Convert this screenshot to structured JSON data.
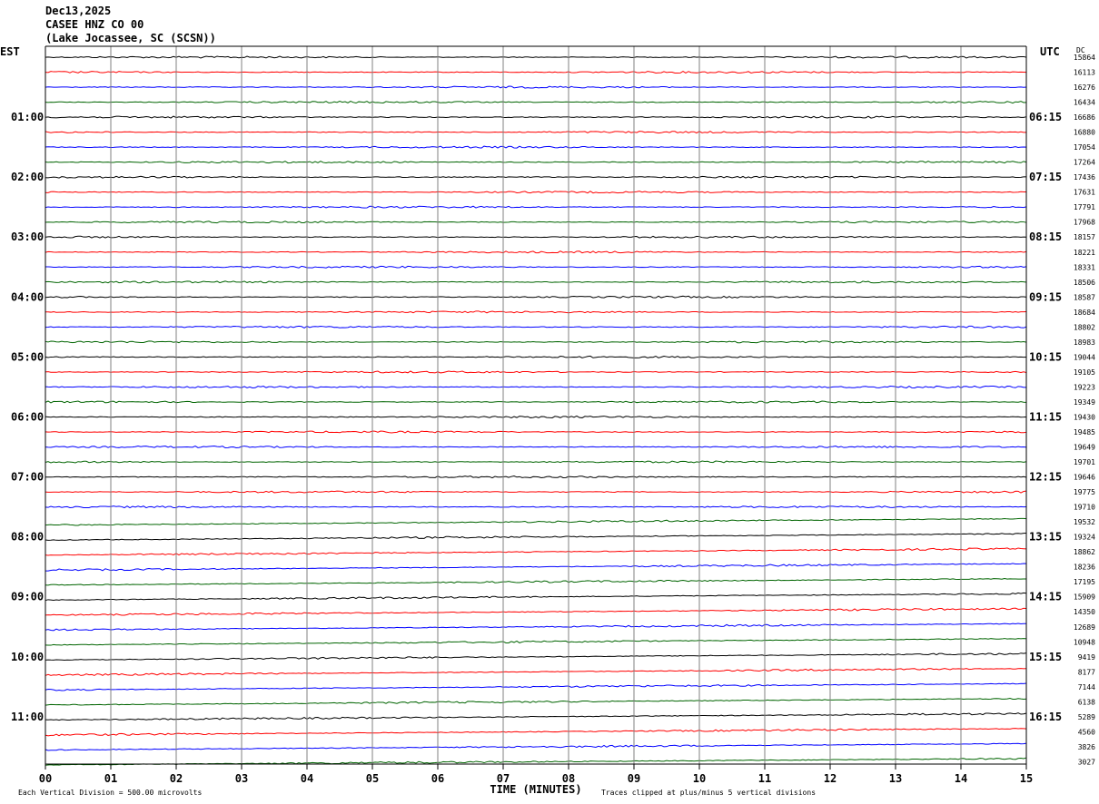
{
  "header": {
    "date": "Dec13,2025",
    "station": "CASEE HNZ CO 00",
    "location": "(Lake Jocassee, SC (SCSN))"
  },
  "chart_data": {
    "type": "line",
    "left_timezone": "EST",
    "right_timezone": "UTC",
    "dc_header": "DC",
    "xlabel": "TIME (MINUTES)",
    "x_ticks": [
      "00",
      "01",
      "02",
      "03",
      "04",
      "05",
      "06",
      "07",
      "08",
      "09",
      "10",
      "11",
      "12",
      "13",
      "14",
      "15"
    ],
    "x_range": [
      0,
      15
    ],
    "left_hour_labels": [
      "01:00",
      "02:00",
      "03:00",
      "04:00",
      "05:00",
      "06:00",
      "07:00",
      "08:00",
      "09:00",
      "10:00",
      "11:00"
    ],
    "right_hour_labels": [
      "06:15",
      "07:15",
      "08:15",
      "09:15",
      "10:15",
      "11:15",
      "12:15",
      "13:15",
      "14:15",
      "15:15",
      "16:15"
    ],
    "trace_colors": [
      "#000000",
      "#ff0000",
      "#0000ff",
      "#006400"
    ],
    "dc_values": [
      "15864",
      "16113",
      "16276",
      "16434",
      "16686",
      "16880",
      "17054",
      "17264",
      "17436",
      "17631",
      "17791",
      "17968",
      "18157",
      "18221",
      "18331",
      "18506",
      "18587",
      "18684",
      "18802",
      "18983",
      "19044",
      "19105",
      "19223",
      "19349",
      "19430",
      "19485",
      "19649",
      "19701",
      "19646",
      "19775",
      "19710",
      "19532",
      "19324",
      "18862",
      "18236",
      "17195",
      "15909",
      "14350",
      "12689",
      "10948",
      "9419",
      "8177",
      "7144",
      "6138",
      "5289",
      "4560",
      "3826",
      "3027"
    ],
    "scale_note": "Each Vertical Division =  500.00 microvolts",
    "clip_note": "Traces clipped at plus/minus 5 vertical divisions",
    "grid": true
  }
}
